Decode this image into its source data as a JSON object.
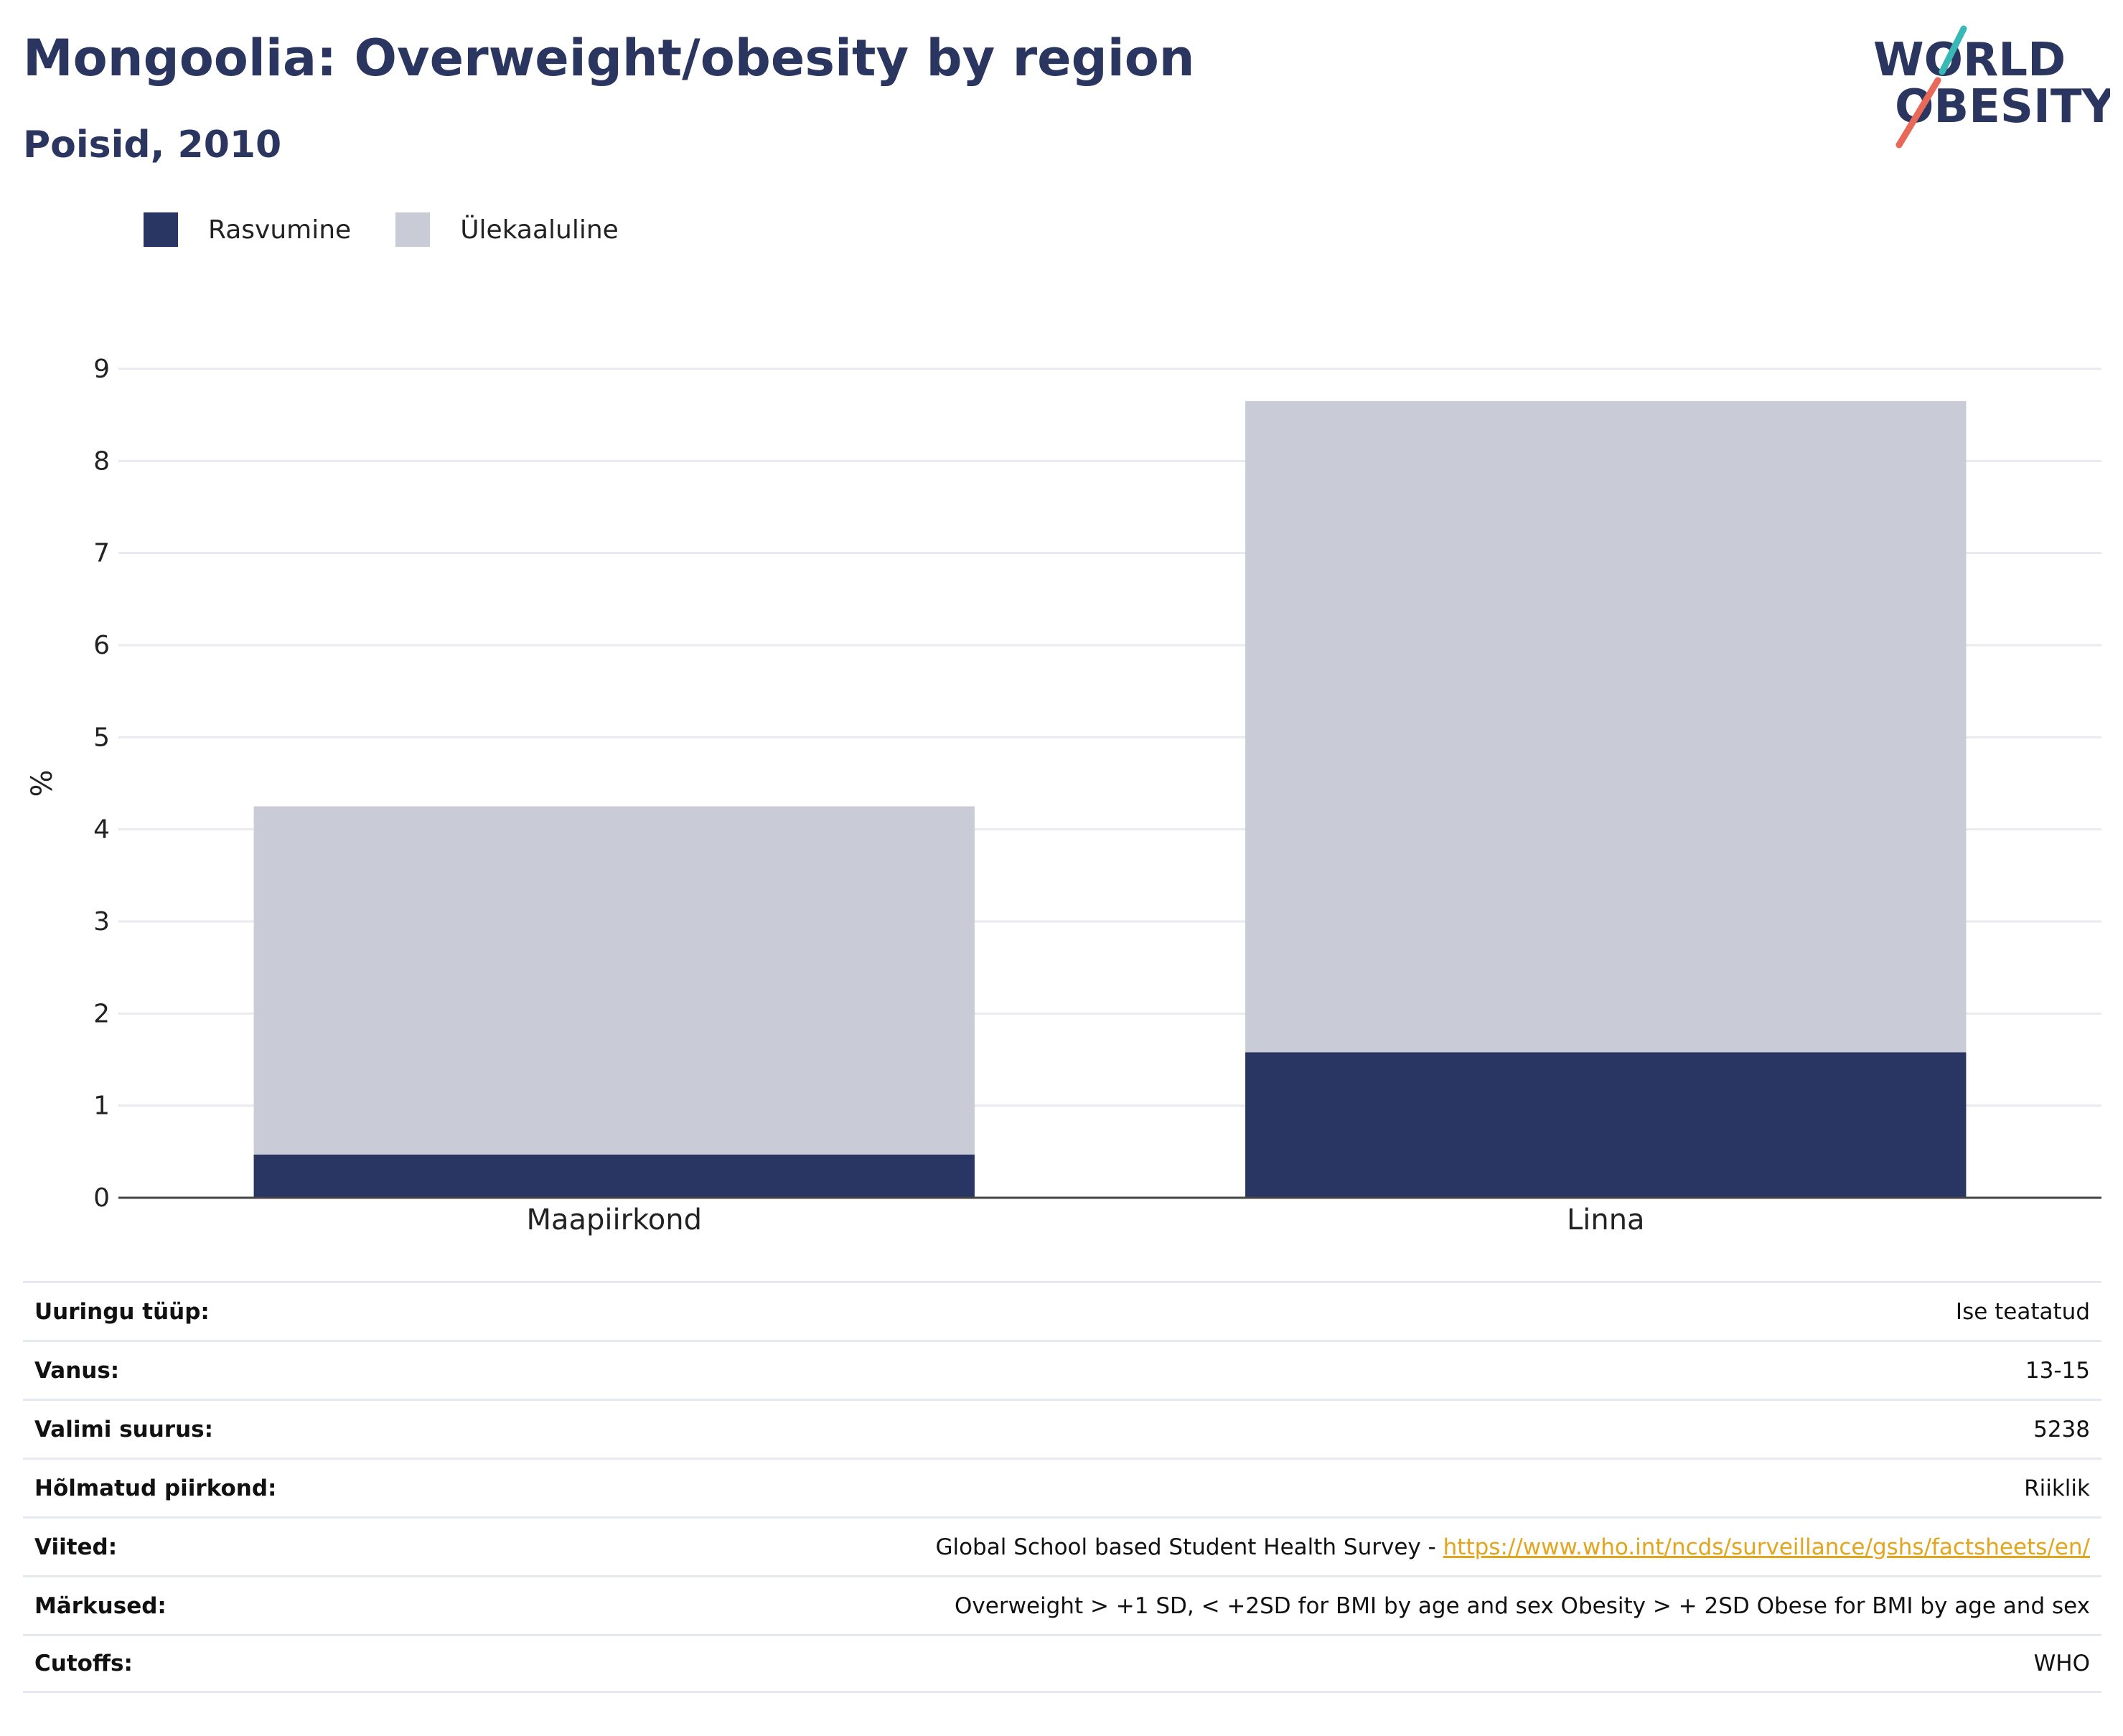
{
  "title": "Mongoolia: Overweight/obesity by region",
  "subtitle": "Poisid, 2010",
  "logo": {
    "line1": "WORLD",
    "line2": "OBESITY",
    "accent_colors": [
      "#3ab8b5",
      "#e8695a"
    ],
    "text_color": "#2a3560"
  },
  "chart_data": {
    "type": "bar",
    "stacked": true,
    "categories": [
      "Maapiirkond",
      "Linna"
    ],
    "series": [
      {
        "name": "Rasvumine",
        "values": [
          0.47,
          1.58
        ],
        "color": "#293562"
      },
      {
        "name": "Ülekaaluline",
        "values": [
          3.78,
          7.07
        ],
        "color": "#c9ccd7"
      }
    ],
    "ylabel": "%",
    "ylim": [
      0,
      9
    ],
    "yticks": [
      0,
      1,
      2,
      3,
      4,
      5,
      6,
      7,
      8,
      9
    ],
    "grid": true,
    "legend_position": "top-left"
  },
  "info": [
    {
      "label": "Uuringu tüüp:",
      "value": "Ise teatatud"
    },
    {
      "label": "Vanus:",
      "value": "13-15"
    },
    {
      "label": "Valimi suurus:",
      "value": "5238"
    },
    {
      "label": "Hõlmatud piirkond:",
      "value": "Riiklik"
    },
    {
      "label": "Viited:",
      "value": "Global School based Student Health Survey - ",
      "link": "https://www.who.int/ncds/surveillance/gshs/factsheets/en/"
    },
    {
      "label": "Märkused:",
      "value": "Overweight > +1 SD, < +2SD for BMI by age and sex Obesity > + 2SD Obese for BMI by age and sex"
    },
    {
      "label": "Cutoffs:",
      "value": "WHO"
    }
  ]
}
